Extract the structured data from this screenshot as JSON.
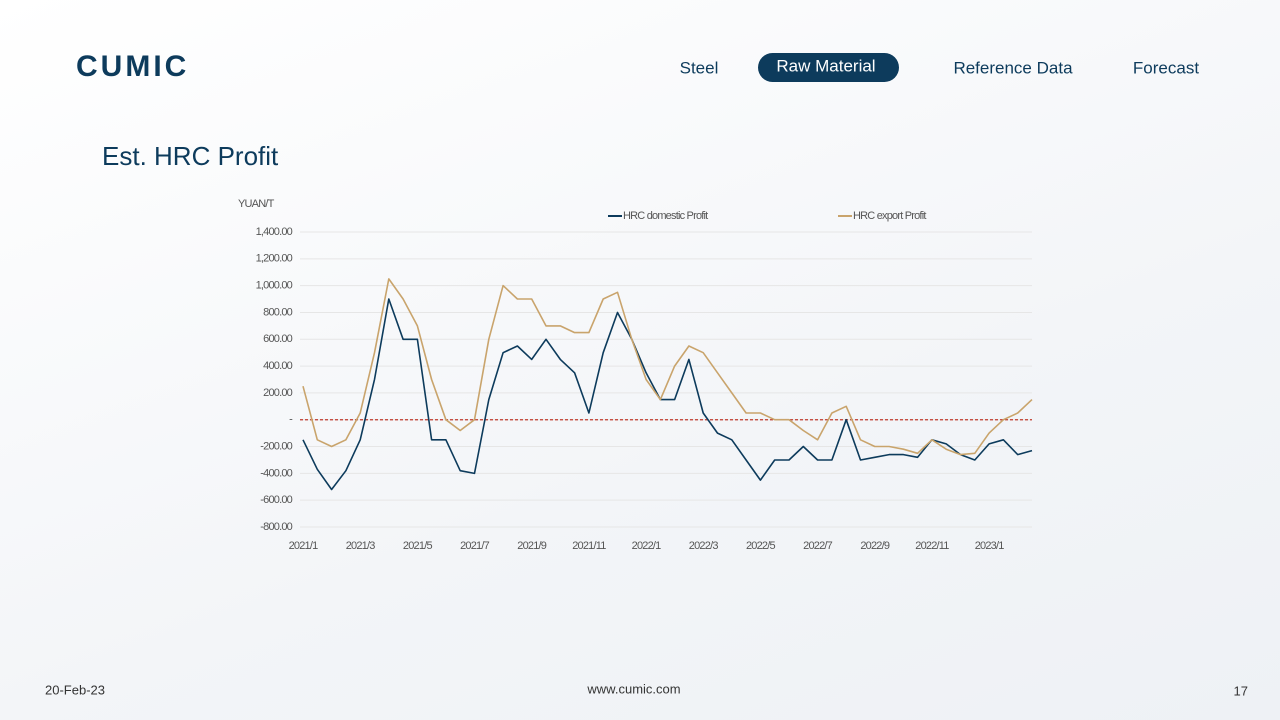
{
  "header": {
    "logo": "CUMIC",
    "nav": [
      "Steel",
      "Raw Material",
      "Reference Data",
      "Forecast"
    ]
  },
  "chart_data": {
    "type": "line",
    "title": "Est. HRC Profit",
    "y_label": "YUAN/T",
    "categories": [
      "2021/1",
      null,
      null,
      null,
      "2021/3",
      null,
      null,
      null,
      "2021/5",
      null,
      null,
      null,
      "2021/7",
      null,
      null,
      null,
      "2021/9",
      null,
      null,
      null,
      "2021/11",
      null,
      null,
      null,
      "2022/1",
      null,
      null,
      null,
      "2022/3",
      null,
      null,
      null,
      "2022/5",
      null,
      null,
      null,
      "2022/7",
      null,
      null,
      null,
      "2022/9",
      null,
      null,
      null,
      "2022/11",
      null,
      null,
      null,
      "2023/1",
      null,
      null,
      null
    ],
    "series": [
      {
        "name": "HRC domestic Profit",
        "color": "#0d3b5c",
        "values": [
          -150,
          -370,
          -520,
          -380,
          -150,
          300,
          900,
          600,
          600,
          -150,
          -150,
          -380,
          -400,
          150,
          500,
          550,
          450,
          600,
          450,
          350,
          50,
          500,
          800,
          600,
          350,
          150,
          150,
          450,
          50,
          -100,
          -150,
          -300,
          -450,
          -300,
          -300,
          -200,
          -300,
          -300,
          0,
          -300,
          -280,
          -260,
          -260,
          -280,
          -150,
          -180,
          -260,
          -300,
          -180,
          -150,
          -260,
          -230
        ]
      },
      {
        "name": "HRC export Profit",
        "color": "#c9a46c",
        "values": [
          250,
          -150,
          -200,
          -150,
          50,
          500,
          1050,
          900,
          700,
          300,
          0,
          -80,
          0,
          600,
          1000,
          900,
          900,
          700,
          700,
          650,
          650,
          900,
          950,
          600,
          300,
          150,
          400,
          550,
          500,
          350,
          200,
          50,
          50,
          0,
          0,
          -80,
          -150,
          50,
          100,
          -150,
          -200,
          -200,
          -220,
          -250,
          -150,
          -220,
          -260,
          -250,
          -100,
          0,
          50,
          150
        ]
      }
    ],
    "ylim": [
      -800,
      1400
    ],
    "yticks": [
      {
        "value": -800,
        "label": "-800.00"
      },
      {
        "value": -600,
        "label": "-600.00"
      },
      {
        "value": -400,
        "label": "-400.00"
      },
      {
        "value": -200,
        "label": "-200.00"
      },
      {
        "value": 0,
        "label": "-"
      },
      {
        "value": 200,
        "label": "200.00"
      },
      {
        "value": 400,
        "label": "400.00"
      },
      {
        "value": 600,
        "label": "600.00"
      },
      {
        "value": 800,
        "label": "800.00"
      },
      {
        "value": 1000,
        "label": "1,000.00"
      },
      {
        "value": 1200,
        "label": "1,200.00"
      },
      {
        "value": 1400,
        "label": "1,400.00"
      }
    ],
    "grid": true,
    "zero_line_color": "#c0392b",
    "legend": "top"
  },
  "footer": {
    "date": "20-Feb-23",
    "site": "www.cumic.com",
    "page": "17"
  }
}
